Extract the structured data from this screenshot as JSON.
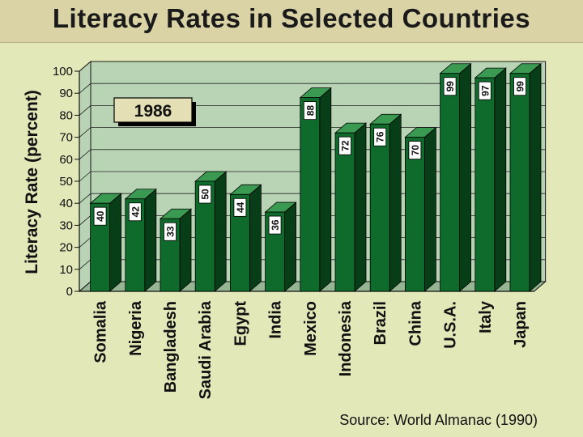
{
  "chart_data": {
    "type": "bar",
    "title": "Literacy Rates in Selected Countries",
    "ylabel": "Literacy Rate (percent)",
    "xlabel": "",
    "ylim": [
      0,
      100
    ],
    "yticks": [
      0,
      10,
      20,
      30,
      40,
      50,
      60,
      70,
      80,
      90,
      100
    ],
    "annotation": "1986",
    "source": "Source: World Almanac (1990)",
    "categories": [
      "Somalia",
      "Nigeria",
      "Bangladesh",
      "Saudi Arabia",
      "Egypt",
      "India",
      "Mexico",
      "Indonesia",
      "Brazil",
      "China",
      "U.S.A.",
      "Italy",
      "Japan"
    ],
    "values": [
      40,
      42,
      33,
      50,
      44,
      36,
      88,
      72,
      76,
      70,
      99,
      97,
      99
    ],
    "grid": true,
    "colors": {
      "bar_front": "#0e6b2c",
      "bar_side": "#073d17",
      "bar_top": "#3a9a52",
      "wall": "#b8d4b4",
      "floor": "#96b592",
      "grid": "#222222",
      "annotation_box": "#e5dfb6"
    }
  }
}
